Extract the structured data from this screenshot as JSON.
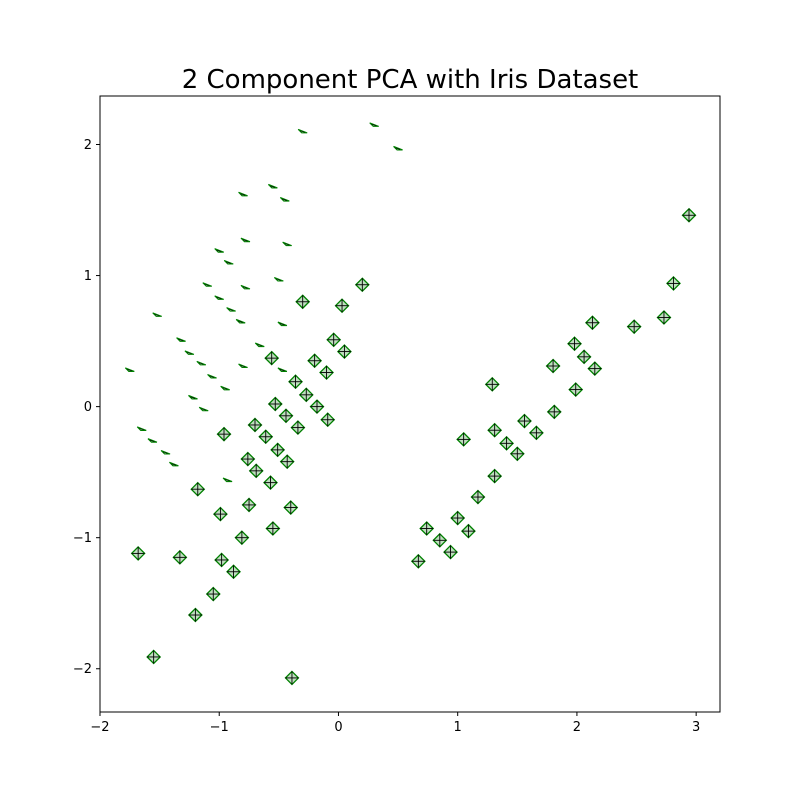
{
  "chart_data": {
    "type": "scatter",
    "title": "2 Component PCA with Iris Dataset",
    "xlabel": "",
    "ylabel": "",
    "xlim": [
      -2.0,
      3.2
    ],
    "ylim": [
      -2.33,
      2.37
    ],
    "xticks": [
      -2,
      -1,
      0,
      1,
      2,
      3
    ],
    "xtick_labels": [
      "−2",
      "−1",
      "0",
      "1",
      "2",
      "3"
    ],
    "yticks": [
      -2,
      -1,
      0,
      1,
      2
    ],
    "ytick_labels": [
      "−2",
      "−1",
      "0",
      "1",
      "2"
    ],
    "grid": false,
    "legend": false,
    "marker_color": "#008000",
    "series": [
      {
        "marker": "small-wedge",
        "points": [
          [
            -0.3,
            2.1
          ],
          [
            0.3,
            2.15
          ],
          [
            0.5,
            1.97
          ],
          [
            -0.8,
            1.62
          ],
          [
            -0.55,
            1.68
          ],
          [
            -0.45,
            1.58
          ],
          [
            -0.78,
            1.27
          ],
          [
            -0.43,
            1.24
          ],
          [
            -1.0,
            1.19
          ],
          [
            -0.92,
            1.1
          ],
          [
            -0.5,
            0.97
          ],
          [
            -1.1,
            0.93
          ],
          [
            -0.78,
            0.91
          ],
          [
            -1.0,
            0.83
          ],
          [
            -0.9,
            0.74
          ],
          [
            -1.52,
            0.7
          ],
          [
            -0.82,
            0.65
          ],
          [
            -0.47,
            0.63
          ],
          [
            -1.32,
            0.51
          ],
          [
            -0.66,
            0.47
          ],
          [
            -1.25,
            0.41
          ],
          [
            -1.15,
            0.33
          ],
          [
            -0.8,
            0.31
          ],
          [
            -0.47,
            0.28
          ],
          [
            -1.75,
            0.28
          ],
          [
            -1.06,
            0.23
          ],
          [
            -0.95,
            0.14
          ],
          [
            -1.22,
            0.07
          ],
          [
            -1.13,
            -0.02
          ],
          [
            -1.65,
            -0.17
          ],
          [
            -1.56,
            -0.26
          ],
          [
            -1.45,
            -0.35
          ],
          [
            -1.38,
            -0.44
          ],
          [
            -0.93,
            -0.56
          ]
        ]
      },
      {
        "marker": "diamond-plus",
        "points": [
          [
            -0.3,
            0.8
          ],
          [
            0.03,
            0.77
          ],
          [
            0.2,
            0.93
          ],
          [
            -0.04,
            0.51
          ],
          [
            0.05,
            0.42
          ],
          [
            -0.56,
            0.37
          ],
          [
            -0.2,
            0.35
          ],
          [
            -0.1,
            0.26
          ],
          [
            -0.36,
            0.19
          ],
          [
            -0.27,
            0.09
          ],
          [
            -0.53,
            0.02
          ],
          [
            -0.18,
            0.0
          ],
          [
            -0.44,
            -0.07
          ],
          [
            -0.09,
            -0.1
          ],
          [
            -0.34,
            -0.16
          ],
          [
            -0.7,
            -0.14
          ],
          [
            -0.96,
            -0.21
          ],
          [
            -0.61,
            -0.23
          ],
          [
            -0.51,
            -0.33
          ],
          [
            -0.76,
            -0.4
          ],
          [
            -0.43,
            -0.42
          ],
          [
            -0.69,
            -0.49
          ],
          [
            -0.57,
            -0.58
          ],
          [
            -1.18,
            -0.63
          ],
          [
            -0.75,
            -0.75
          ],
          [
            -0.4,
            -0.77
          ],
          [
            -0.99,
            -0.82
          ],
          [
            -0.55,
            -0.93
          ],
          [
            -0.81,
            -1.0
          ],
          [
            -1.68,
            -1.12
          ],
          [
            -1.33,
            -1.15
          ],
          [
            -0.98,
            -1.17
          ],
          [
            -0.88,
            -1.26
          ],
          [
            -1.05,
            -1.43
          ],
          [
            -1.2,
            -1.59
          ],
          [
            -1.55,
            -1.91
          ],
          [
            -0.39,
            -2.07
          ],
          [
            2.94,
            1.46
          ],
          [
            2.81,
            0.94
          ],
          [
            2.73,
            0.68
          ],
          [
            2.48,
            0.61
          ],
          [
            2.13,
            0.64
          ],
          [
            1.98,
            0.48
          ],
          [
            2.06,
            0.38
          ],
          [
            2.15,
            0.29
          ],
          [
            1.8,
            0.31
          ],
          [
            1.99,
            0.13
          ],
          [
            1.29,
            0.17
          ],
          [
            1.81,
            -0.04
          ],
          [
            1.56,
            -0.11
          ],
          [
            1.31,
            -0.18
          ],
          [
            1.66,
            -0.2
          ],
          [
            1.05,
            -0.25
          ],
          [
            1.41,
            -0.28
          ],
          [
            1.5,
            -0.36
          ],
          [
            1.31,
            -0.53
          ],
          [
            1.17,
            -0.69
          ],
          [
            1.0,
            -0.85
          ],
          [
            1.09,
            -0.95
          ],
          [
            0.74,
            -0.93
          ],
          [
            0.85,
            -1.02
          ],
          [
            0.94,
            -1.11
          ],
          [
            0.67,
            -1.18
          ]
        ]
      }
    ]
  }
}
